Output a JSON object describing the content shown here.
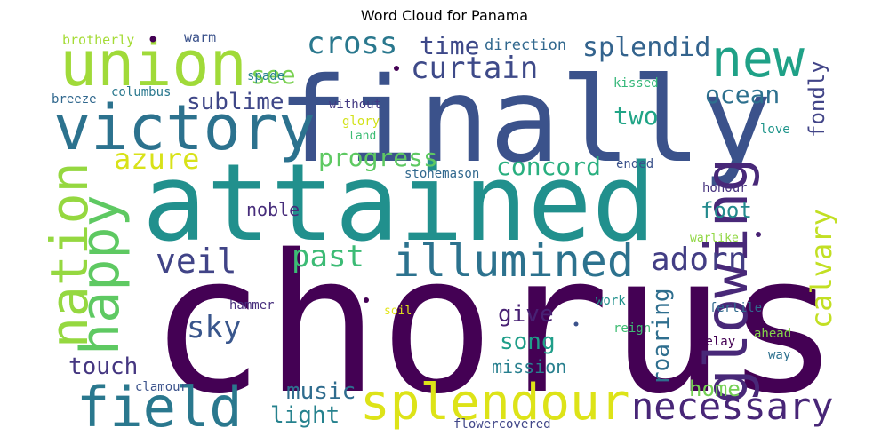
{
  "chart_data": {
    "type": "wordcloud",
    "title": "Word Cloud for Panama",
    "colormap": "viridis",
    "words": [
      {
        "text": "chorus",
        "color": "#440154"
      },
      {
        "text": "attained",
        "color": "#21908d"
      },
      {
        "text": "finally",
        "color": "#3b528b"
      },
      {
        "text": "union",
        "color": "#a0da39"
      },
      {
        "text": "victory",
        "color": "#2c728e"
      },
      {
        "text": "new",
        "color": "#1fa187"
      },
      {
        "text": "glowing",
        "color": "#482878"
      },
      {
        "text": "happy",
        "color": "#5ec962"
      },
      {
        "text": "nation",
        "color": "#95d840"
      },
      {
        "text": "field",
        "color": "#2a788e"
      },
      {
        "text": "splendour",
        "color": "#dde318"
      },
      {
        "text": "illumined",
        "color": "#2c728e"
      },
      {
        "text": "necessary",
        "color": "#482677"
      },
      {
        "text": "cross",
        "color": "#2a788e"
      },
      {
        "text": "curtain",
        "color": "#3e4a89"
      },
      {
        "text": "splendid",
        "color": "#33638d"
      },
      {
        "text": "azure",
        "color": "#d8e219"
      },
      {
        "text": "calvary",
        "color": "#c2df23"
      },
      {
        "text": "past",
        "color": "#3cbb75"
      },
      {
        "text": "veil",
        "color": "#414487"
      },
      {
        "text": "adorn",
        "color": "#433e85"
      },
      {
        "text": "sky",
        "color": "#39568c"
      },
      {
        "text": "ocean",
        "color": "#2d708e"
      },
      {
        "text": "sublime",
        "color": "#3f4788"
      },
      {
        "text": "time",
        "color": "#3e4989"
      },
      {
        "text": "see",
        "color": "#7ad151"
      },
      {
        "text": "progress",
        "color": "#5ec962"
      },
      {
        "text": "concord",
        "color": "#29af7f"
      },
      {
        "text": "two",
        "color": "#20a486"
      },
      {
        "text": "fondly",
        "color": "#414487"
      },
      {
        "text": "foot",
        "color": "#238a8d"
      },
      {
        "text": "noble",
        "color": "#472d7b"
      },
      {
        "text": "give",
        "color": "#482173"
      },
      {
        "text": "song",
        "color": "#1f9e89"
      },
      {
        "text": "roaring",
        "color": "#2e6e8e"
      },
      {
        "text": "touch",
        "color": "#453781"
      },
      {
        "text": "music",
        "color": "#2f6c8e"
      },
      {
        "text": "light",
        "color": "#26828e"
      },
      {
        "text": "home",
        "color": "#75d054"
      },
      {
        "text": "mission",
        "color": "#277f8e"
      },
      {
        "text": "direction",
        "color": "#31688e"
      },
      {
        "text": "brotherly",
        "color": "#a5db36"
      },
      {
        "text": "warm",
        "color": "#3b528b"
      },
      {
        "text": "spade",
        "color": "#26828e"
      },
      {
        "text": "columbus",
        "color": "#2a788e"
      },
      {
        "text": "breeze",
        "color": "#31688e"
      },
      {
        "text": "kissed",
        "color": "#35b779"
      },
      {
        "text": "without",
        "color": "#443a83"
      },
      {
        "text": "glory",
        "color": "#d2e21b"
      },
      {
        "text": "land",
        "color": "#3dbc74"
      },
      {
        "text": "love",
        "color": "#1f958b"
      },
      {
        "text": "ended",
        "color": "#3b528b"
      },
      {
        "text": "stonemason",
        "color": "#31688e"
      },
      {
        "text": "honour",
        "color": "#46327e"
      },
      {
        "text": "warlike",
        "color": "#90d743"
      },
      {
        "text": "work",
        "color": "#21918c"
      },
      {
        "text": "hammer",
        "color": "#472f7d"
      },
      {
        "text": "soil",
        "color": "#e2e418"
      },
      {
        "text": "reign",
        "color": "#3fbc73"
      },
      {
        "text": "fertile",
        "color": "#306a8e"
      },
      {
        "text": "ahead",
        "color": "#84d44b"
      },
      {
        "text": "delay",
        "color": "#440154"
      },
      {
        "text": "way",
        "color": "#2d708e"
      },
      {
        "text": "clamour",
        "color": "#3b528b"
      },
      {
        "text": "flowercovered",
        "color": "#404688"
      }
    ]
  }
}
